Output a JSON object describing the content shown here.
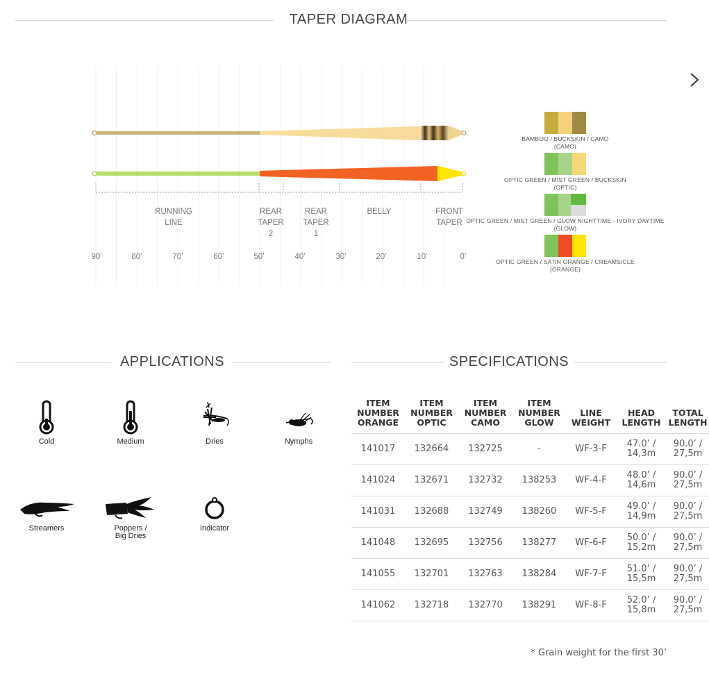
{
  "taper": {
    "title": "TAPER DIAGRAM",
    "sections": [
      {
        "lines": [
          "RUNNING",
          "LINE"
        ]
      },
      {
        "lines": [
          "REAR",
          "TAPER",
          "2"
        ]
      },
      {
        "lines": [
          "REAR",
          "TAPER",
          "1"
        ]
      },
      {
        "lines": [
          "BELLY"
        ]
      },
      {
        "lines": [
          "FRONT",
          "TAPER"
        ]
      }
    ],
    "scale": [
      "90’",
      "80’",
      "70’",
      "60’",
      "50’",
      "40’",
      "30’",
      "20’",
      "10’",
      "0’"
    ],
    "line_colors": {
      "camo_running": "#c9b47a",
      "camo_head": "#f9dc9c",
      "camo_bands": "#4a3a20",
      "green_running": "#b5dd6a",
      "orange_head": "#f26222",
      "yellow_tip": "#ffe600"
    },
    "colorways": [
      {
        "caption": [
          "BAMBOO / BUCKSKIN / CAMO",
          "(CAMO)"
        ],
        "colors": [
          "#c9ab3a",
          "#f5d27a",
          "#a38a44"
        ]
      },
      {
        "caption": [
          "OPTIC GREEN / MIST GREEN / BUCKSKIN",
          "(OPTIC)"
        ],
        "colors": [
          "#7fc45a",
          "#a6d48b",
          "#f7d775"
        ]
      },
      {
        "caption": [
          "OPTIC GREEN / MIST GREEN / GLOW NIGHTTIME - IVORY DAYTIME",
          "(GLOW)"
        ],
        "colors": [
          "#7fc45a",
          "#a6d48b",
          "#5fbb3f",
          "#dcdcdc"
        ]
      },
      {
        "caption": [
          "OPTIC GREEN / SATIN ORANGE / CREAMSICLE",
          "(ORANGE)"
        ],
        "colors": [
          "#7fc45a",
          "#ef4b24",
          "#ffe500"
        ]
      }
    ],
    "next_icon": "chevron-right-icon"
  },
  "applications": {
    "title": "APPLICATIONS",
    "items": [
      {
        "label": "Cold",
        "icon": "thermometer-cold-icon"
      },
      {
        "label": "Medium",
        "icon": "thermometer-medium-icon"
      },
      {
        "label": "Dries",
        "icon": "dry-fly-icon"
      },
      {
        "label": "Nymphs",
        "icon": "nymph-icon"
      },
      {
        "label": "Streamers",
        "icon": "streamer-icon"
      },
      {
        "label": "Poppers /",
        "label2": "Big Dries",
        "icon": "popper-icon"
      },
      {
        "label": "Indicator",
        "icon": "indicator-icon"
      }
    ]
  },
  "specifications": {
    "title": "SPECIFICATIONS",
    "headers": [
      [
        "ITEM",
        "NUMBER",
        "ORANGE"
      ],
      [
        "ITEM",
        "NUMBER",
        "OPTIC"
      ],
      [
        "ITEM",
        "NUMBER",
        "CAMO"
      ],
      [
        "ITEM",
        "NUMBER",
        "GLOW"
      ],
      [
        "LINE",
        "WEIGHT"
      ],
      [
        "HEAD",
        "LENGTH"
      ],
      [
        "TOTAL",
        "LENGTH"
      ]
    ],
    "rows": [
      [
        "141017",
        "132664",
        "132725",
        "-",
        "WF-3-F",
        "47.0’ /",
        "14,3m",
        "90.0’ /",
        "27,5m"
      ],
      [
        "141024",
        "132671",
        "132732",
        "138253",
        "WF-4-F",
        "48.0’ /",
        "14,6m",
        "90.0’ /",
        "27,5m"
      ],
      [
        "141031",
        "132688",
        "132749",
        "138260",
        "WF-5-F",
        "49.0’ /",
        "14,9m",
        "90.0’ /",
        "27,5m"
      ],
      [
        "141048",
        "132695",
        "132756",
        "138277",
        "WF-6-F",
        "50.0’ /",
        "15,2m",
        "90.0’ /",
        "27,5m"
      ],
      [
        "141055",
        "132701",
        "132763",
        "138284",
        "WF-7-F",
        "51.0’ /",
        "15,5m",
        "90.0’ /",
        "27,5m"
      ],
      [
        "141062",
        "132718",
        "132770",
        "138291",
        "WF-8-F",
        "52.0’ /",
        "15,8m",
        "90.0’ /",
        "27,5m"
      ]
    ],
    "footnote": "* Grain weight for the first 30’"
  }
}
